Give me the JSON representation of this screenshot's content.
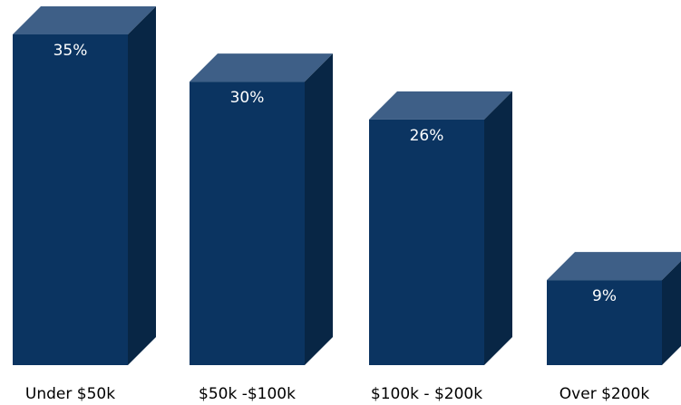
{
  "chart_data": {
    "type": "bar",
    "style": "3d-column",
    "categories": [
      "Under $50k",
      "$50k -$100k",
      "$100k - $200k",
      "Over $200k"
    ],
    "values": [
      35,
      30,
      26,
      9
    ],
    "data_labels": [
      "35%",
      "30%",
      "26%",
      "9%"
    ],
    "title": "",
    "xlabel": "",
    "ylabel": "",
    "ylim": [
      0,
      35
    ],
    "grid": false,
    "legend": "none"
  },
  "colors": {
    "front": "#0b3461",
    "top": "#3e5f87",
    "side": "#082645"
  }
}
